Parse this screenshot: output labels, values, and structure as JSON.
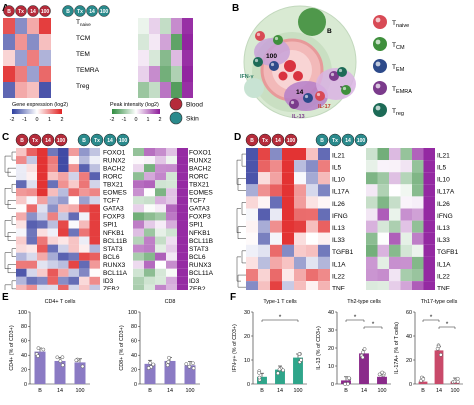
{
  "panels": {
    "A": "A",
    "B": "B",
    "C": "C",
    "D": "D",
    "E": "E",
    "F": "F"
  },
  "conditions": [
    "B",
    "Tx",
    "14",
    "100"
  ],
  "cell_types": [
    "T_naive",
    "TCM",
    "TEM",
    "TEMRA",
    "Treg"
  ],
  "cell_type_labels": {
    "naive": {
      "main": "T",
      "sub": "naive"
    },
    "cm": {
      "main": "T",
      "sub": "CM"
    },
    "em": {
      "main": "T",
      "sub": "EM"
    },
    "emra": {
      "main": "T",
      "sub": "EMRA"
    },
    "reg": {
      "main": "T",
      "sub": "reg"
    }
  },
  "legend": {
    "gene_expression": "Gene expression (log2)",
    "gene_ticks": [
      "-2",
      "-1",
      "0",
      "1",
      "2"
    ],
    "peak_intensity": "Peak intensity (log2)",
    "peak_ticks": [
      "-2",
      "-1",
      "0",
      "1",
      "2"
    ],
    "blood": "Blood",
    "skin": "Skin"
  },
  "diagram_b": {
    "labels": [
      "B",
      "100",
      "14",
      "Tx",
      "IFN-γ",
      "IL-17",
      "IL-13"
    ],
    "colors": {
      "naive": "#d84a55",
      "cm": "#3f8f3c",
      "em": "#2d4a8a",
      "emra": "#7b3b8c",
      "reg": "#1d6b57"
    }
  },
  "genes_c": [
    "FOXO1",
    "RUNX2",
    "BACH2",
    "RORC",
    "TBX21",
    "EOMES",
    "TCF7",
    "GATA3",
    "FOXP3",
    "SPI1",
    "NFKB1",
    "BCL11B",
    "STAT3",
    "BCL6",
    "RUNX3",
    "BCL11A",
    "ID3",
    "ZEB2"
  ],
  "genes_d": [
    "IL21",
    "IL5",
    "IL10",
    "IL17A",
    "IL26",
    "IFNG",
    "IL13",
    "IL33",
    "TGFB1",
    "IL1A",
    "IL22",
    "TNF"
  ],
  "chart_data": [
    {
      "type": "bar",
      "title": "CD4+ T cells",
      "ylabel": "CD4+ (% of CD3+)",
      "categories": [
        "B",
        "14",
        "100"
      ],
      "values": [
        45,
        32,
        30
      ],
      "ylim": [
        0,
        100
      ],
      "yticks": [
        "0",
        "20",
        "40",
        "60",
        "80",
        "100"
      ],
      "color": "#8b7bc4"
    },
    {
      "type": "bar",
      "title": "CD8",
      "ylabel": "CD8+ (% of CD3+)",
      "categories": [
        "B",
        "14",
        "100"
      ],
      "values": [
        28,
        32,
        26
      ],
      "ylim": [
        0,
        100
      ],
      "yticks": [
        "0",
        "20",
        "40",
        "60",
        "80",
        "100"
      ],
      "color": "#8b7bc4"
    },
    {
      "type": "bar",
      "title": "Type-1 T cells",
      "ylabel": "IFN-γ+ (% of CD3+)",
      "categories": [
        "B",
        "14",
        "100"
      ],
      "values": [
        3,
        6,
        11
      ],
      "ylim": [
        0,
        30
      ],
      "yticks": [
        "0",
        "10",
        "20",
        "30"
      ],
      "color": "#2fa58a",
      "annotations": [
        "*"
      ]
    },
    {
      "type": "bar",
      "title": "Th2-type cells",
      "ylabel": "IL-13 (% of CD3+)",
      "categories": [
        "B",
        "14",
        "100"
      ],
      "values": [
        2,
        17,
        4
      ],
      "ylim": [
        0,
        40
      ],
      "yticks": [
        "0",
        "10",
        "20",
        "30",
        "40"
      ],
      "color": "#8a2a8a",
      "annotations": [
        "*",
        "*"
      ]
    },
    {
      "type": "bar",
      "title": "Th17-type cells",
      "ylabel": "IL-17A+ (% of T cells)",
      "categories": [
        "B",
        "14",
        "100"
      ],
      "values": [
        2,
        28,
        2
      ],
      "ylim": [
        0,
        60
      ],
      "yticks": [
        "0",
        "20",
        "40",
        "60"
      ],
      "color": "#c94a6a",
      "annotations": [
        "*",
        "*"
      ]
    }
  ]
}
